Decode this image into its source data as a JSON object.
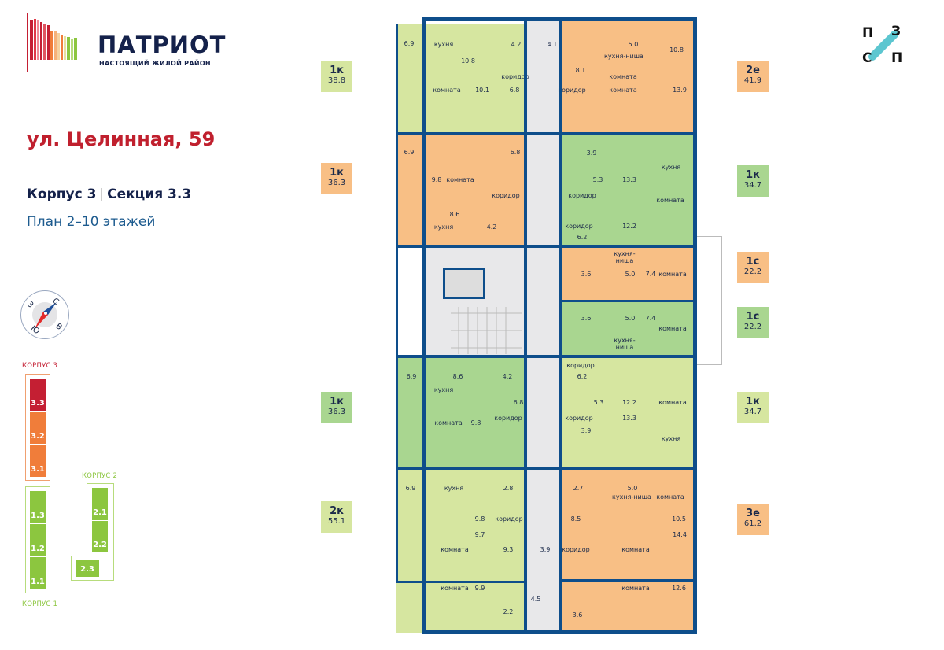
{
  "brand": {
    "name": "ПАТРИОТ",
    "tagline": "НАСТОЯЩИЙ ЖИЛОЙ РАЙОН",
    "partner_logo_letters": [
      "П",
      "З",
      "С",
      "П"
    ]
  },
  "address": "ул. Целинная, 59",
  "building": {
    "korpus": "Корпус 3",
    "section": "Секция 3.3",
    "floors": "План 2–10 этажей"
  },
  "compass": {
    "n": "С",
    "e": "В",
    "s": "Ю",
    "w": "З"
  },
  "site_map": {
    "korpus3": {
      "label": "КОРПУС 3",
      "sections": [
        "3.3",
        "3.2",
        "3.1"
      ],
      "colors": [
        "#c41f33",
        "#f07d3a",
        "#f07d3a"
      ]
    },
    "korpus2": {
      "label": "КОРПУС 2",
      "sections": [
        "2.1",
        "2.2",
        "2.3"
      ],
      "color": "#8cc63f"
    },
    "korpus1": {
      "label": "КОРПУС 1",
      "sections": [
        "1.3",
        "1.2",
        "1.1"
      ],
      "color": "#8cc63f"
    }
  },
  "colors": {
    "light_green": "#d6e6a0",
    "green": "#a9d690",
    "orange": "#f8bf85",
    "wall": "#0e4e8b",
    "common": "#e8e8ea"
  },
  "apartments": [
    {
      "type": "1к",
      "area": "38.8",
      "color": "light_green",
      "rooms": [
        "6.9",
        "кухня",
        "4.2",
        "10.8",
        "коридор",
        "комната",
        "10.1",
        "6.8"
      ]
    },
    {
      "type": "2е",
      "area": "41.9",
      "color": "orange",
      "rooms": [
        "4.1",
        "5.0",
        "кухня-ниша",
        "10.8",
        "8.1",
        "комната",
        "коридор",
        "комната",
        "13.9"
      ]
    },
    {
      "type": "1к",
      "area": "36.3",
      "color": "orange",
      "rooms": [
        "6.9",
        "6.8",
        "9.8",
        "комната",
        "коридор",
        "8.6",
        "кухня",
        "4.2"
      ]
    },
    {
      "type": "1к",
      "area": "34.7",
      "color": "green",
      "rooms": [
        "3.9",
        "кухня",
        "5.3",
        "13.3",
        "коридор",
        "комната",
        "коридор",
        "12.2",
        "6.2"
      ]
    },
    {
      "type": "1с",
      "area": "22.2",
      "color": "orange",
      "rooms": [
        "кухня-",
        "ниша",
        "3.6",
        "5.0",
        "7.4",
        "комната"
      ]
    },
    {
      "type": "1с",
      "area": "22.2",
      "color": "green",
      "rooms": [
        "3.6",
        "5.0",
        "7.4",
        "комната",
        "кухня-",
        "ниша"
      ]
    },
    {
      "type": "1к",
      "area": "36.3",
      "color": "green",
      "rooms": [
        "6.9",
        "8.6",
        "4.2",
        "кухня",
        "6.8",
        "коридор",
        "комната",
        "9.8"
      ]
    },
    {
      "type": "1к",
      "area": "34.7",
      "color": "light_green",
      "rooms": [
        "коридор",
        "6.2",
        "5.3",
        "12.2",
        "комната",
        "коридор",
        "13.3",
        "3.9",
        "кухня"
      ]
    },
    {
      "type": "2к",
      "area": "55.1",
      "color": "light_green",
      "rooms": [
        "6.9",
        "кухня",
        "2.8",
        "9.8",
        "коридор",
        "9.7",
        "комната",
        "9.3",
        "комната",
        "9.9",
        "4.5",
        "2.2"
      ]
    },
    {
      "type": "3е",
      "area": "61.2",
      "color": "orange",
      "rooms": [
        "3.9",
        "2.7",
        "5.0",
        "кухня-ниша",
        "комната",
        "8.5",
        "10.5",
        "14.4",
        "коридор",
        "комната",
        "комната",
        "12.6",
        "3.6"
      ]
    }
  ]
}
